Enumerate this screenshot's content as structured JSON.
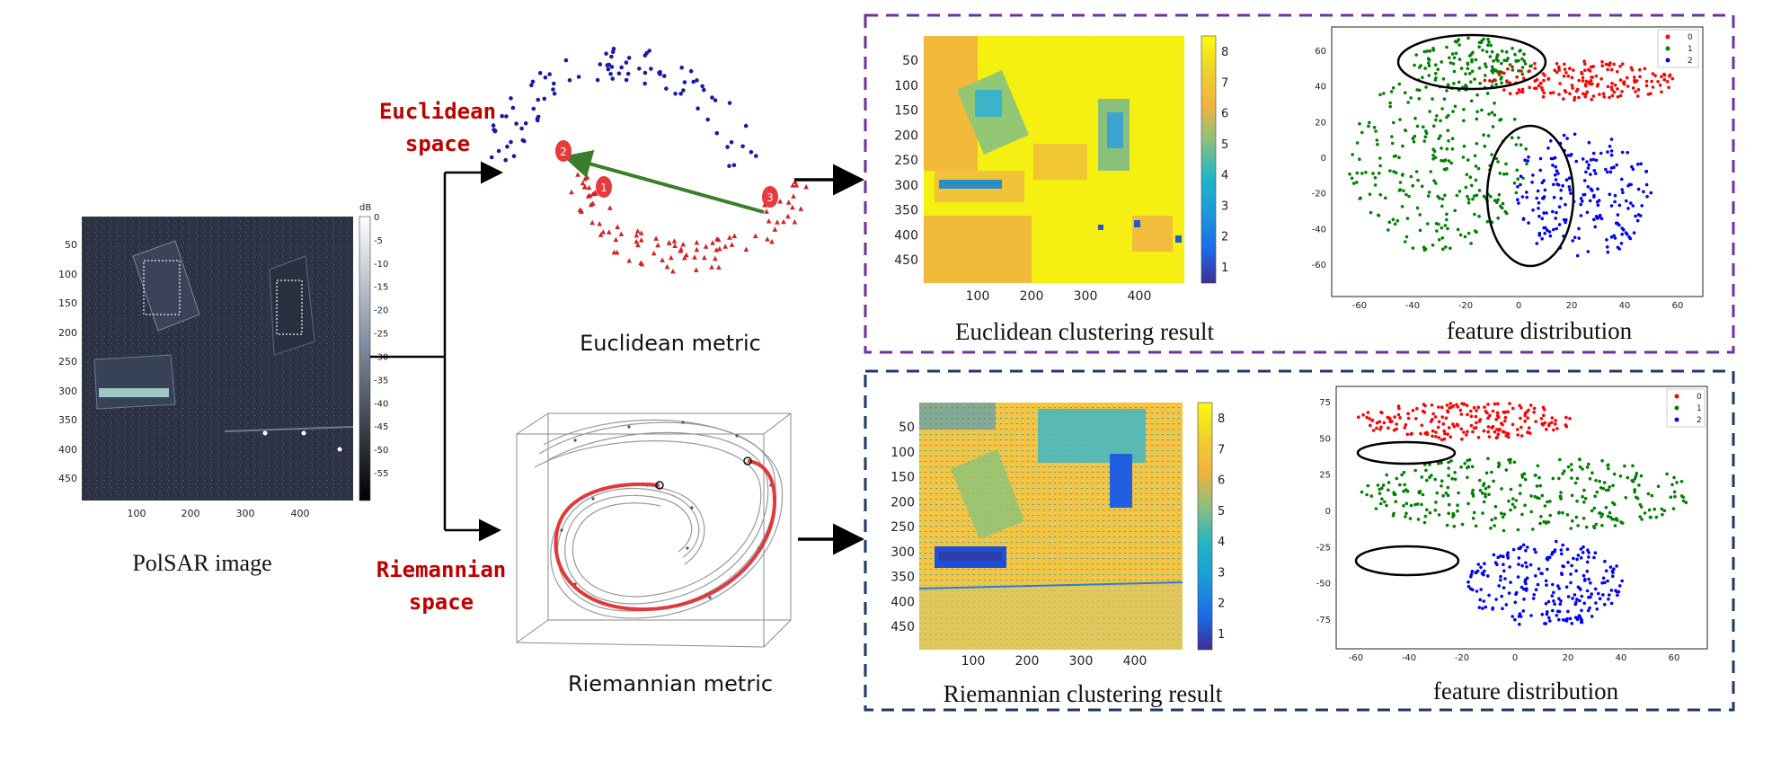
{
  "polsar": {
    "caption": "PolSAR image",
    "colorbar_unit": "dB",
    "colorbar_ticks": [
      "0",
      "-5",
      "-10",
      "-15",
      "-20",
      "-25",
      "-30",
      "-35",
      "-40",
      "-45",
      "-50",
      "-55"
    ],
    "y_ticks": [
      "50",
      "100",
      "150",
      "200",
      "250",
      "300",
      "350",
      "400",
      "450"
    ],
    "x_ticks": [
      "100",
      "200",
      "300",
      "400"
    ]
  },
  "euclidean": {
    "space_label_1": "Euclidean",
    "space_label_2": "space",
    "metric_caption": "Euclidean metric",
    "point_labels": [
      "1",
      "2",
      "3"
    ]
  },
  "riemannian": {
    "space_label_1": "Riemannian",
    "space_label_2": "space",
    "metric_caption": "Riemannian metric"
  },
  "euclid_panel": {
    "map_caption": "Euclidean clustering result",
    "feature_caption": "feature distribution",
    "map_y_ticks": [
      "50",
      "100",
      "150",
      "200",
      "250",
      "300",
      "350",
      "400",
      "450"
    ],
    "map_x_ticks": [
      "100",
      "200",
      "300",
      "400"
    ],
    "colorbar_ticks": [
      "8",
      "7",
      "6",
      "5",
      "4",
      "3",
      "2",
      "1"
    ],
    "scatter_y_ticks": [
      "60",
      "40",
      "20",
      "0",
      "-20",
      "-40",
      "-60"
    ],
    "scatter_x_ticks": [
      "-60",
      "-40",
      "-20",
      "0",
      "20",
      "40",
      "60"
    ],
    "legend": [
      "0",
      "1",
      "2"
    ]
  },
  "riem_panel": {
    "map_caption": "Riemannian clustering result",
    "feature_caption": "feature distribution",
    "map_y_ticks": [
      "50",
      "100",
      "150",
      "200",
      "250",
      "300",
      "350",
      "400",
      "450"
    ],
    "map_x_ticks": [
      "100",
      "200",
      "300",
      "400"
    ],
    "colorbar_ticks": [
      "8",
      "7",
      "6",
      "5",
      "4",
      "3",
      "2",
      "1"
    ],
    "scatter_y_ticks": [
      "75",
      "50",
      "25",
      "0",
      "-25",
      "-50",
      "-75"
    ],
    "scatter_x_ticks": [
      "-60",
      "-40",
      "-20",
      "0",
      "20",
      "40",
      "60"
    ],
    "legend": [
      "0",
      "1",
      "2"
    ]
  },
  "colors": {
    "cluster_0": "#ff0000",
    "cluster_1": "#008000",
    "cluster_2": "#0000ff",
    "euclid_frame": "#7030a0",
    "riem_frame": "#1f3864",
    "space_label": "#c00000"
  }
}
